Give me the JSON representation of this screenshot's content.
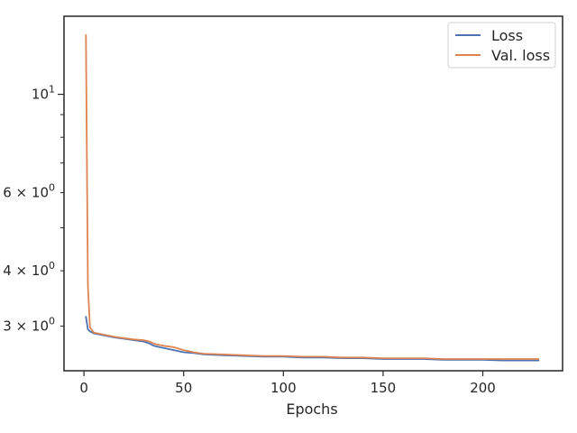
{
  "chart_data": {
    "type": "line",
    "title": "",
    "xlabel": "Epochs",
    "ylabel": "",
    "xlim": [
      -10,
      240
    ],
    "ylim": [
      2.38,
      15.0
    ],
    "yscale": "log",
    "grid": false,
    "legend_position": "top-right",
    "xticks": [
      0,
      50,
      100,
      150,
      200
    ],
    "xtick_labels": [
      "0",
      "50",
      "100",
      "150",
      "200"
    ],
    "yticks_major": [
      10
    ],
    "yticks_minor": [
      3,
      4,
      5,
      6,
      7,
      8,
      9
    ],
    "ytick_labels": [
      {
        "value": 10,
        "base": "10",
        "exp": "1",
        "prefix": ""
      },
      {
        "value": 6,
        "base": "10",
        "exp": "0",
        "prefix": "6 × "
      },
      {
        "value": 4,
        "base": "10",
        "exp": "0",
        "prefix": "4 × "
      },
      {
        "value": 3,
        "base": "10",
        "exp": "0",
        "prefix": "3 × "
      }
    ],
    "x": [
      1,
      2,
      3,
      5,
      10,
      15,
      20,
      25,
      30,
      33,
      35,
      38,
      40,
      45,
      50,
      55,
      60,
      70,
      80,
      90,
      100,
      110,
      120,
      130,
      140,
      150,
      160,
      170,
      180,
      190,
      200,
      210,
      220,
      228
    ],
    "series": [
      {
        "name": "Loss",
        "color": "#4c72b0",
        "values": [
          3.15,
          2.95,
          2.92,
          2.89,
          2.86,
          2.83,
          2.81,
          2.79,
          2.77,
          2.74,
          2.71,
          2.69,
          2.68,
          2.65,
          2.62,
          2.61,
          2.59,
          2.58,
          2.57,
          2.56,
          2.56,
          2.55,
          2.55,
          2.54,
          2.54,
          2.53,
          2.53,
          2.53,
          2.52,
          2.52,
          2.52,
          2.51,
          2.51,
          2.51
        ]
      },
      {
        "name": "Val. loss",
        "color": "#dd8452",
        "values": [
          13.6,
          3.7,
          2.98,
          2.9,
          2.87,
          2.84,
          2.82,
          2.8,
          2.79,
          2.77,
          2.74,
          2.72,
          2.71,
          2.69,
          2.65,
          2.62,
          2.6,
          2.59,
          2.58,
          2.57,
          2.57,
          2.56,
          2.56,
          2.55,
          2.55,
          2.54,
          2.54,
          2.54,
          2.53,
          2.53,
          2.53,
          2.53,
          2.53,
          2.53
        ]
      }
    ]
  }
}
